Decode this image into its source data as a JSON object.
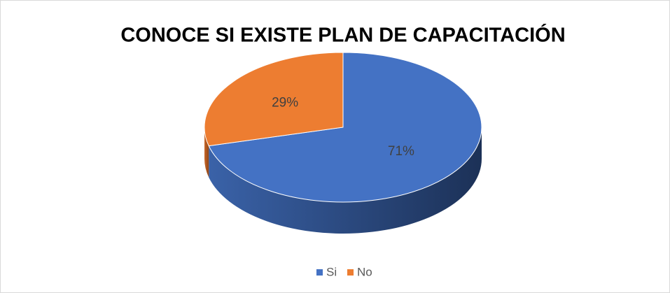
{
  "chart_data": {
    "type": "pie",
    "title": "CONOCE SI EXISTE PLAN DE CAPACITACIÓN",
    "categories": [
      "Si",
      "No"
    ],
    "values": [
      71,
      29
    ],
    "value_labels": [
      "71%",
      "29%"
    ],
    "colors": [
      "#4472c4",
      "#ed7d31"
    ],
    "legend": "bottom"
  }
}
